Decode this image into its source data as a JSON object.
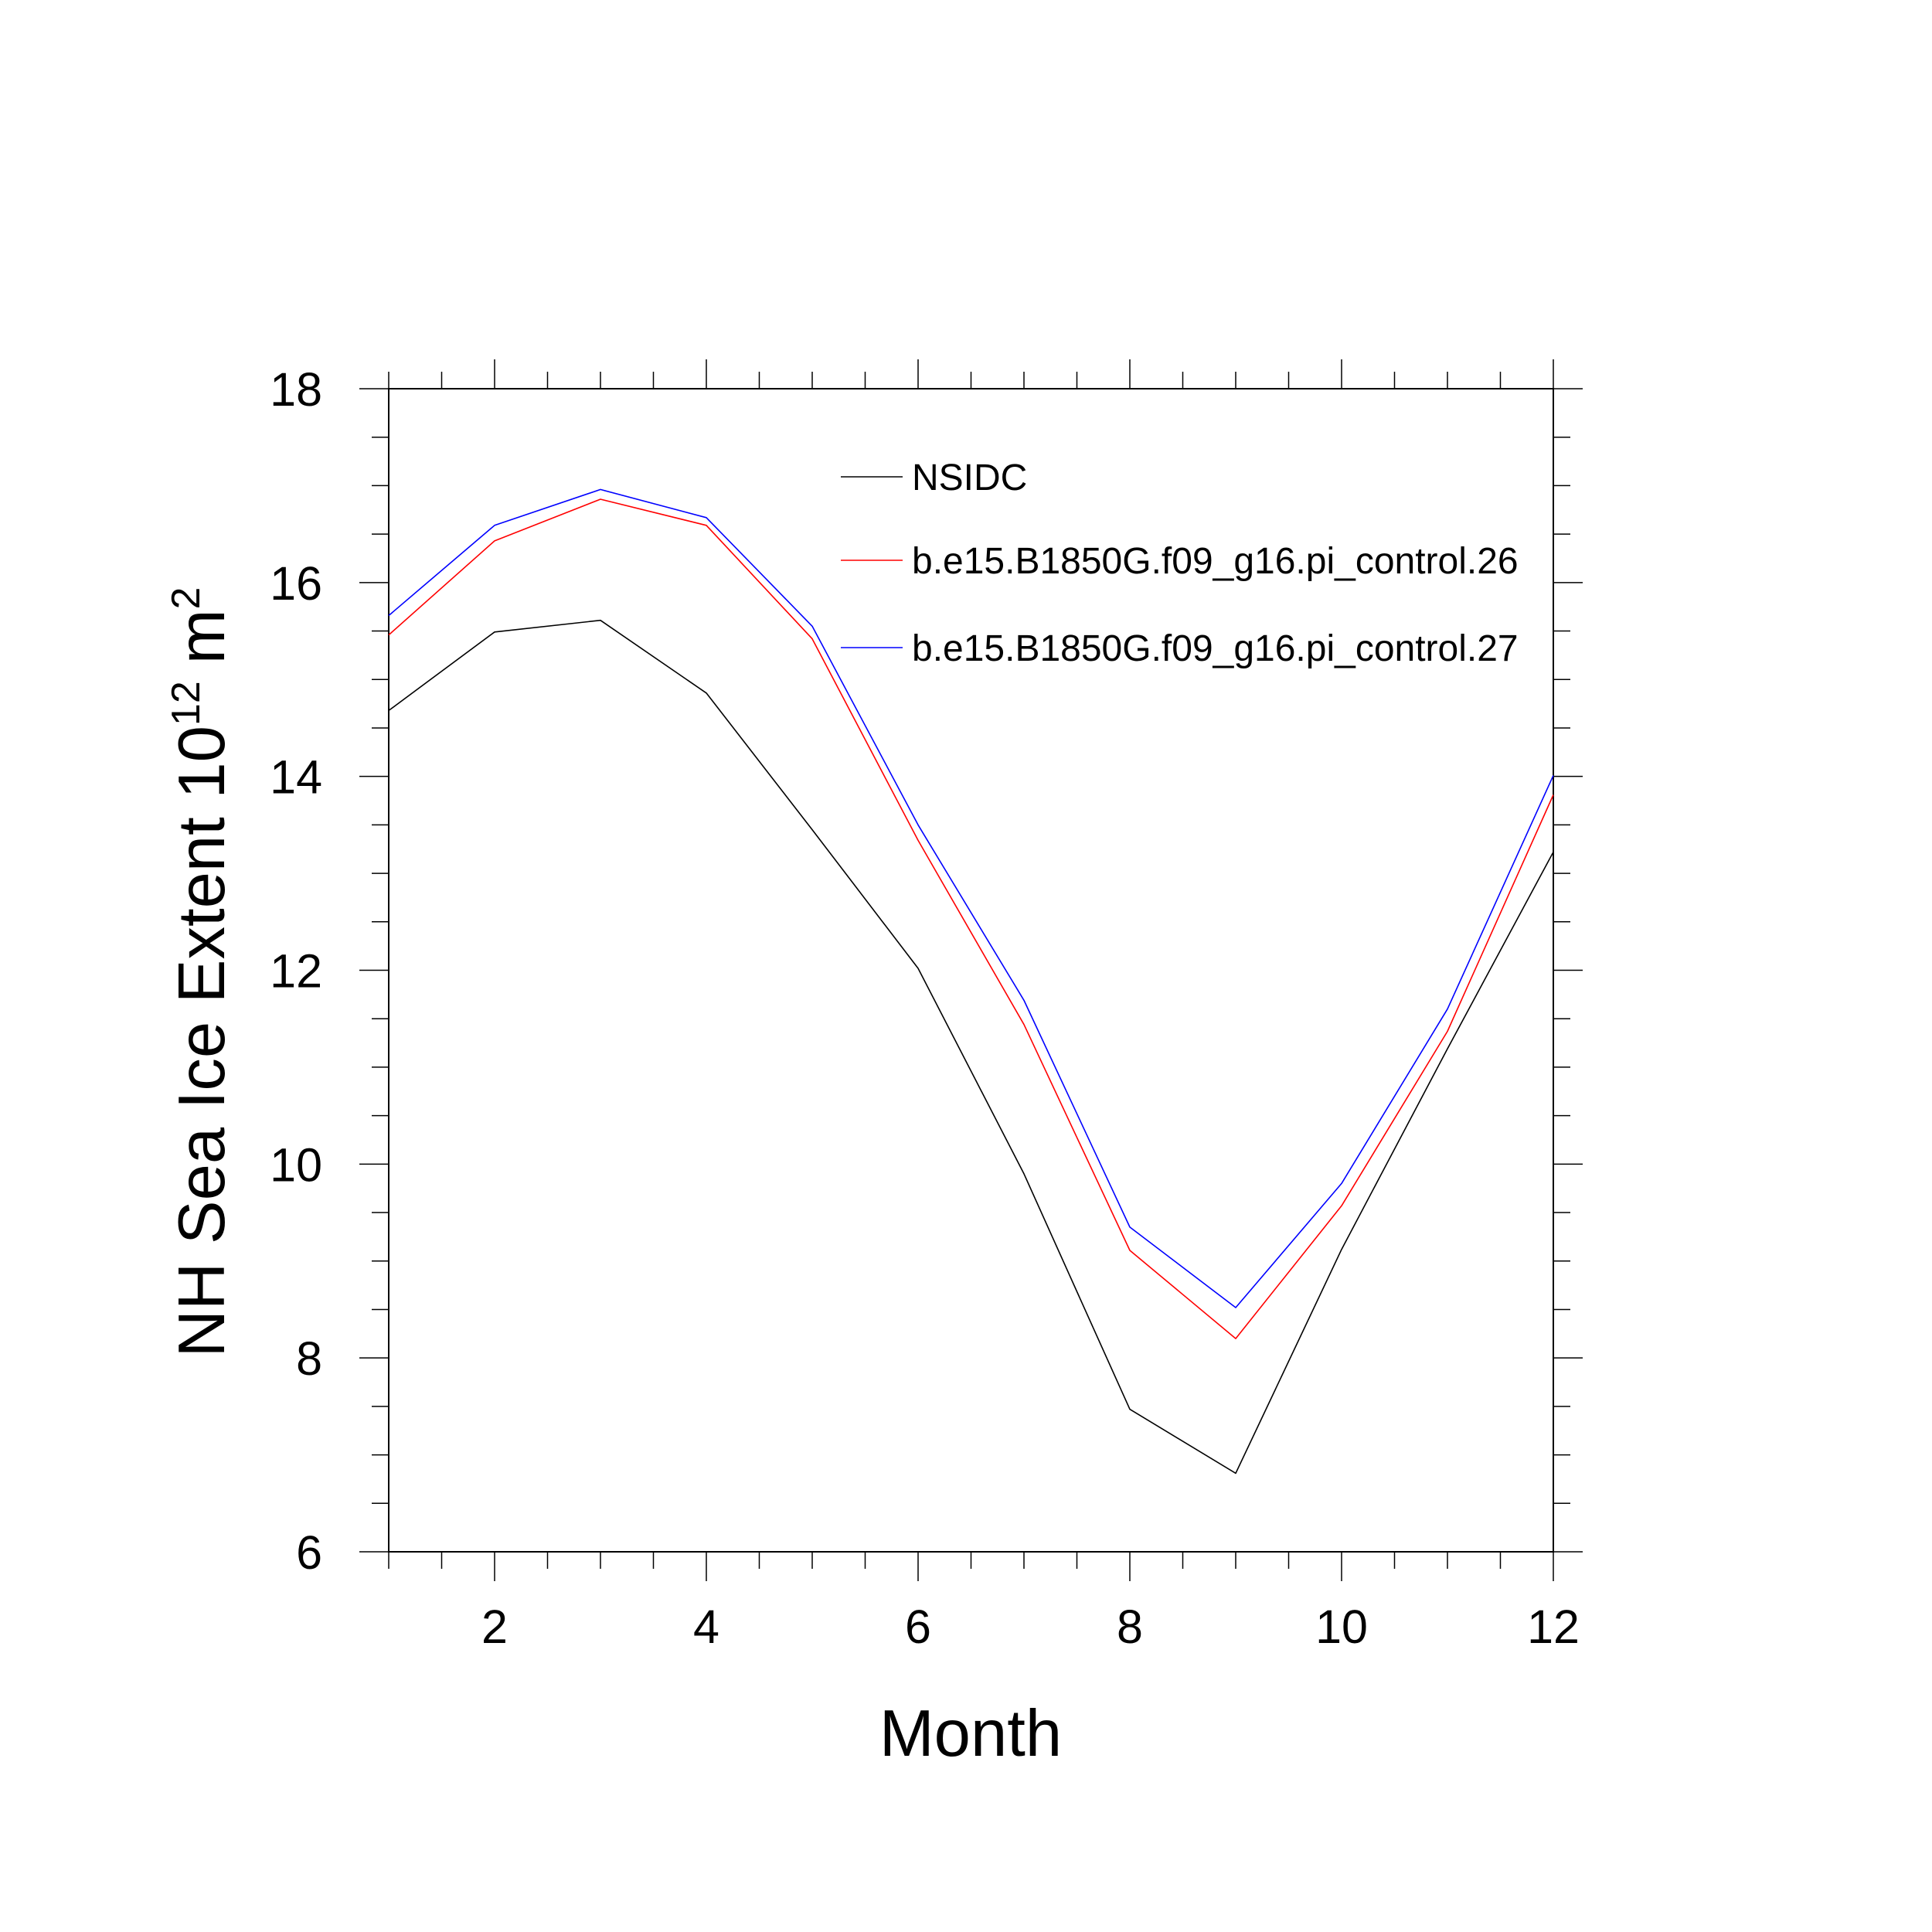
{
  "chart_data": {
    "type": "line",
    "title": "",
    "xlabel": "Month",
    "ylabel": {
      "text": "NH Sea Ice Extent 10",
      "exponent": "12",
      "unit": "m",
      "unit_exponent": "2"
    },
    "xlim": [
      1,
      12
    ],
    "ylim": [
      6,
      18
    ],
    "xticks": [
      "2",
      "4",
      "6",
      "8",
      "10",
      "12"
    ],
    "yticks": [
      "6",
      "8",
      "10",
      "12",
      "14",
      "16",
      "18"
    ],
    "grid": false,
    "legend_position": "top-right inside",
    "x": [
      1,
      2,
      3,
      4,
      5,
      6,
      7,
      8,
      9,
      10,
      11,
      12
    ],
    "series": [
      {
        "name": "NSIDC",
        "color": "#000000",
        "values": [
          14.68,
          15.49,
          15.61,
          14.86,
          13.45,
          12.02,
          9.9,
          7.47,
          6.81,
          9.12,
          11.19,
          13.22
        ]
      },
      {
        "name": "b.e15.B1850G.f09_g16.pi_control.26",
        "color": "#ff0000",
        "values": [
          15.46,
          16.43,
          16.86,
          16.59,
          15.42,
          13.34,
          11.44,
          9.11,
          8.2,
          9.57,
          11.37,
          13.81
        ]
      },
      {
        "name": "b.e15.B1850G.f09_g16.pi_control.27",
        "color": "#0000ff",
        "values": [
          15.66,
          16.59,
          16.96,
          16.67,
          15.55,
          13.5,
          11.69,
          9.35,
          8.52,
          9.8,
          11.6,
          14.01
        ]
      }
    ]
  }
}
